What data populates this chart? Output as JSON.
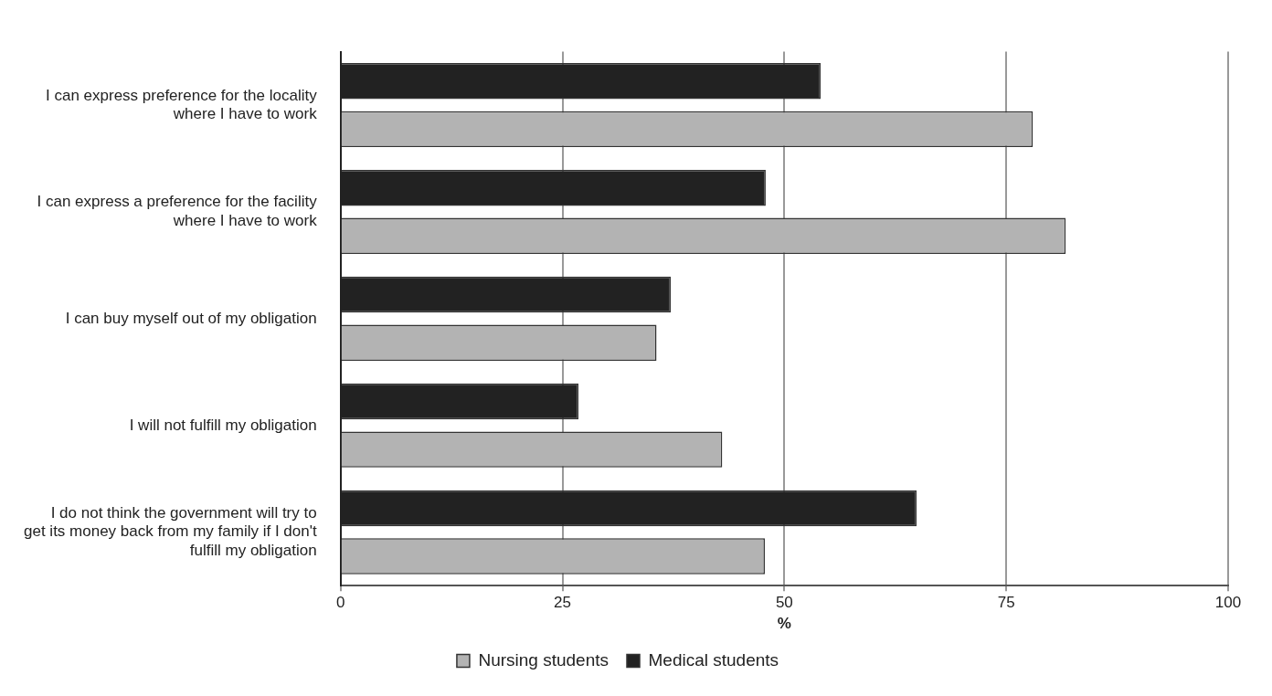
{
  "chart_data": {
    "type": "bar",
    "orientation": "horizontal",
    "xlabel": "%",
    "categories": [
      "I can express preference for the locality where I have to work",
      "I can express a preference for the facility where I have to work",
      "I can buy myself out of my obligation",
      "I will not fulfill my obligation",
      "I do not think the government will try to get its money back from my family if I don't fulfill my obligation"
    ],
    "series": [
      {
        "name": "Nursing students",
        "color": "#b3b3b3",
        "values": [
          78,
          81.7,
          35.6,
          43,
          47.8
        ]
      },
      {
        "name": "Medical students",
        "color": "#222222",
        "values": [
          54.1,
          47.9,
          37.2,
          26.8,
          64.9
        ]
      }
    ],
    "xlim": [
      0,
      100
    ],
    "xticks": [
      0,
      25,
      50,
      75,
      100
    ],
    "grid": "x",
    "legend": "bottom"
  }
}
